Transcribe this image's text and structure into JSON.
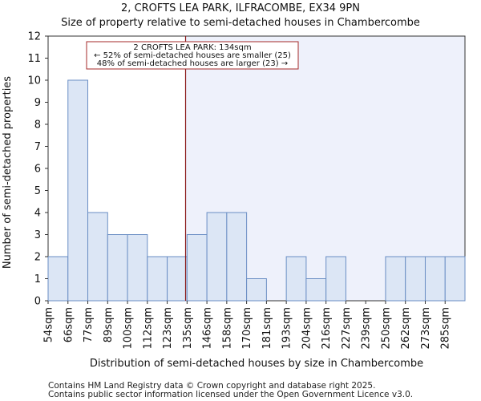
{
  "title_line1": "2, CROFTS LEA PARK, ILFRACOMBE, EX34 9PN",
  "title_line2": "Size of property relative to semi-detached houses in Chambercombe",
  "footer_line1": "Contains HM Land Registry data © Crown copyright and database right 2025.",
  "footer_line2": "Contains public sector information licensed under the Open Government Licence v3.0.",
  "colors": {
    "bar_fill": "#dce6f5",
    "bar_stroke": "#6a8ec4",
    "highlight_bg": "#eef1fb",
    "marker_line": "#8b1a1a"
  },
  "chart_data": {
    "type": "bar",
    "title": "Size of property relative to semi-detached houses in Chambercombe",
    "xlabel": "Distribution of semi-detached houses by size in Chambercombe",
    "ylabel": "Number of semi-detached properties",
    "categories": [
      "54sqm",
      "66sqm",
      "77sqm",
      "89sqm",
      "100sqm",
      "112sqm",
      "123sqm",
      "135sqm",
      "146sqm",
      "158sqm",
      "170sqm",
      "181sqm",
      "193sqm",
      "204sqm",
      "216sqm",
      "227sqm",
      "239sqm",
      "250sqm",
      "262sqm",
      "273sqm",
      "285sqm"
    ],
    "values": [
      2,
      10,
      4,
      3,
      3,
      2,
      2,
      3,
      4,
      4,
      1,
      0,
      2,
      1,
      2,
      0,
      0,
      2,
      2,
      2,
      2
    ],
    "ylim": [
      0,
      12
    ],
    "yticks": [
      0,
      1,
      2,
      3,
      4,
      5,
      6,
      7,
      8,
      9,
      10,
      11,
      12
    ],
    "marker_value_sqm": 134,
    "annotation": {
      "line1": "2 CROFTS LEA PARK: 134sqm",
      "line2": "← 52% of semi-detached houses are smaller (25)",
      "line3": "48% of semi-detached houses are larger (23) →"
    }
  }
}
